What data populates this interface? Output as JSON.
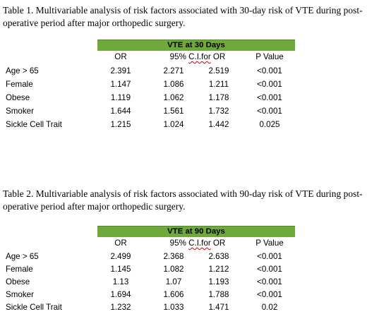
{
  "table1": {
    "caption": "Table 1.  Multivariable analysis of risk factors associated with 30-day risk of VTE during post-operative period after major orthopedic surgery.",
    "band": "VTE at 30 Days",
    "headers": {
      "or": "OR",
      "ci_prefix": "95% ",
      "ci_word": "C.I.for",
      "ci_suffix": " OR",
      "p": "P Value"
    },
    "rows": [
      {
        "label": "Age > 65",
        "or": "2.391",
        "lo": "2.271",
        "hi": "2.519",
        "p": "<0.001"
      },
      {
        "label": "Female",
        "or": "1.147",
        "lo": "1.086",
        "hi": "1.211",
        "p": "<0.001"
      },
      {
        "label": "Obese",
        "or": "1.119",
        "lo": "1.062",
        "hi": "1.178",
        "p": "<0.001"
      },
      {
        "label": "Smoker",
        "or": "1.644",
        "lo": "1.561",
        "hi": "1.732",
        "p": "<0.001"
      },
      {
        "label": "Sickle Cell Trait",
        "or": "1.215",
        "lo": "1.024",
        "hi": "1.442",
        "p": "0.025"
      }
    ]
  },
  "table2": {
    "caption": "Table 2.  Multivariable analysis of risk factors associated with 90-day risk of VTE during post-operative period after major orthopedic surgery.",
    "band": "VTE at 90 Days",
    "headers": {
      "or": "OR",
      "ci_prefix": "95% ",
      "ci_word": "C.I.for",
      "ci_suffix": " OR",
      "p": "P Value"
    },
    "rows": [
      {
        "label": "Age > 65",
        "or": "2.499",
        "lo": "2.368",
        "hi": "2.638",
        "p": "<0.001"
      },
      {
        "label": "Female",
        "or": "1.145",
        "lo": "1.082",
        "hi": "1.212",
        "p": "<0.001"
      },
      {
        "label": "Obese",
        "or": "1.13",
        "lo": "1.07",
        "hi": "1.193",
        "p": "<0.001"
      },
      {
        "label": "Smoker",
        "or": "1.694",
        "lo": "1.606",
        "hi": "1.788",
        "p": "<0.001"
      },
      {
        "label": "Sickle Cell Trait",
        "or": "1.232",
        "lo": "1.033",
        "hi": "1.471",
        "p": "0.02"
      }
    ]
  },
  "colors": {
    "band": "#6fa83b",
    "spellcheck": "#d00000"
  }
}
